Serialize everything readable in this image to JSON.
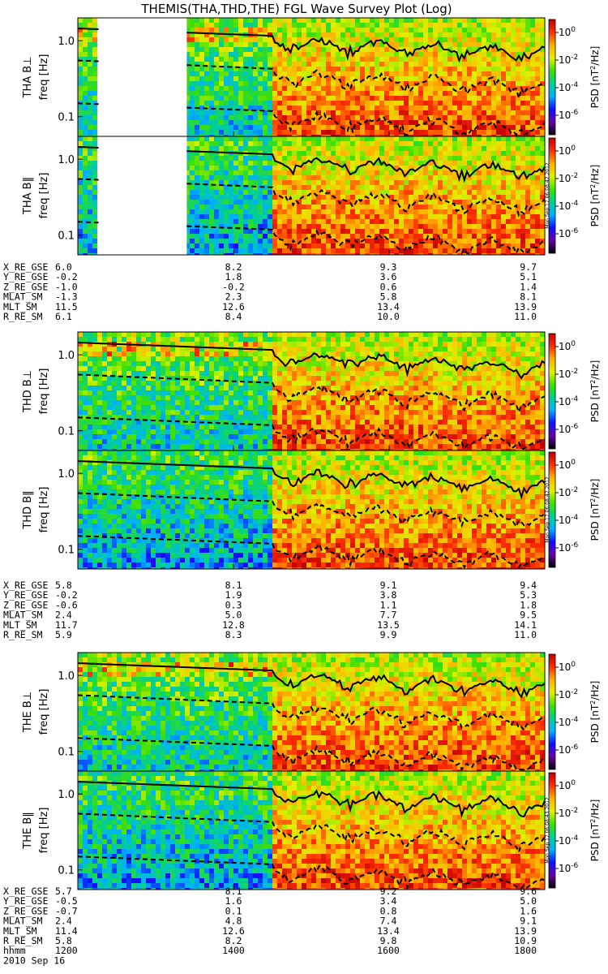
{
  "title": "THEMIS(THA,THD,THE) FGL Wave Survey Plot (Log)",
  "chart_data": {
    "type": "heatmap",
    "figure_title": "THEMIS(THA,THD,THE) FGL Wave Survey Plot (Log)",
    "x_axis": {
      "row_label": "hhmm",
      "date_label": "2010 Sep 16",
      "ticks": [
        "1200",
        "1400",
        "1600",
        "1800"
      ],
      "range_minutes": [
        0,
        360
      ]
    },
    "y_axis": {
      "label": "freq [Hz]",
      "scale": "log",
      "range_hz": [
        0.055,
        2.0
      ],
      "ticks": [
        "1.0",
        "0.1"
      ]
    },
    "colorbar": {
      "label": "PSD [nT²/Hz]",
      "label_base": "PSD [nT",
      "label_sup": "2",
      "label_end": "/Hz]",
      "scale": "log",
      "ticks": [
        {
          "base": "10",
          "exp": "0"
        },
        {
          "base": "10",
          "exp": "-2"
        },
        {
          "base": "10",
          "exp": "-4"
        },
        {
          "base": "10",
          "exp": "-6"
        }
      ],
      "colors": [
        "#000000",
        "#6a00a8",
        "#1010ff",
        "#00b0ff",
        "#00d090",
        "#40e000",
        "#e0f000",
        "#ffb000",
        "#ff3000",
        "#c00000"
      ]
    },
    "stamps": [
      "Mon Sep 17 06:08:42 2012",
      "Mon Sep 17 06:08:42 2012",
      "Mon Sep 17 06:08:43 2012"
    ],
    "probes": [
      {
        "id": "THA",
        "gap_minutes": [
          16,
          84
        ],
        "panels": [
          {
            "label": "THA B⊥"
          },
          {
            "label": "THA B‖"
          }
        ],
        "ephemeris": [
          {
            "name": "X_RE_GSE",
            "values": [
              "6.0",
              "8.2",
              "9.3",
              "9.7"
            ]
          },
          {
            "name": "Y_RE_GSE",
            "values": [
              "-0.2",
              "1.8",
              "3.6",
              "5.1"
            ]
          },
          {
            "name": "Z_RE_GSE",
            "values": [
              "-1.0",
              "-0.2",
              "0.6",
              "1.4"
            ]
          },
          {
            "name": "MLAT_SM",
            "values": [
              "-1.3",
              "2.3",
              "5.8",
              "8.1"
            ]
          },
          {
            "name": "MLT_SM",
            "values": [
              "11.5",
              "12.6",
              "13.4",
              "13.9"
            ]
          },
          {
            "name": "R_RE_SM",
            "values": [
              "6.1",
              "8.4",
              "10.0",
              "11.0"
            ]
          }
        ]
      },
      {
        "id": "THD",
        "gap_minutes": null,
        "panels": [
          {
            "label": "THD B⊥"
          },
          {
            "label": "THD B‖"
          }
        ],
        "ephemeris": [
          {
            "name": "X_RE_GSE",
            "values": [
              "5.8",
              "8.1",
              "9.1",
              "9.4"
            ]
          },
          {
            "name": "Y_RE_GSE",
            "values": [
              "-0.2",
              "1.9",
              "3.8",
              "5.3"
            ]
          },
          {
            "name": "Z_RE_GSE",
            "values": [
              "-0.6",
              "0.3",
              "1.1",
              "1.8"
            ]
          },
          {
            "name": "MLAT_SM",
            "values": [
              "2.4",
              "5.0",
              "7.7",
              "9.5"
            ]
          },
          {
            "name": "MLT_SM",
            "values": [
              "11.7",
              "12.8",
              "13.5",
              "14.1"
            ]
          },
          {
            "name": "R_RE_SM",
            "values": [
              "5.9",
              "8.3",
              "9.9",
              "11.0"
            ]
          }
        ]
      },
      {
        "id": "THE",
        "gap_minutes": null,
        "panels": [
          {
            "label": "THE B⊥"
          },
          {
            "label": "THE B‖"
          }
        ],
        "ephemeris": [
          {
            "name": "X_RE_GSE",
            "values": [
              "5.7",
              "8.1",
              "9.2",
              "9.6"
            ]
          },
          {
            "name": "Y_RE_GSE",
            "values": [
              "-0.5",
              "1.6",
              "3.4",
              "5.0"
            ]
          },
          {
            "name": "Z_RE_GSE",
            "values": [
              "-0.7",
              "0.1",
              "0.8",
              "1.6"
            ]
          },
          {
            "name": "MLAT_SM",
            "values": [
              "2.4",
              "4.8",
              "7.4",
              "9.1"
            ]
          },
          {
            "name": "MLT_SM",
            "values": [
              "11.4",
              "12.6",
              "13.4",
              "13.9"
            ]
          },
          {
            "name": "R_RE_SM",
            "values": [
              "5.8",
              "8.2",
              "9.8",
              "10.9"
            ]
          }
        ]
      }
    ]
  }
}
